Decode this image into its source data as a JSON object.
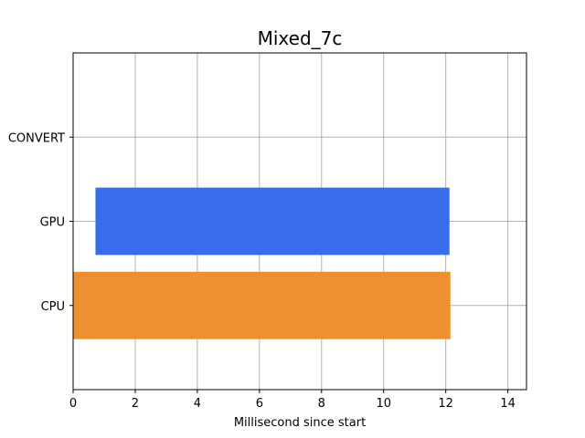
{
  "chart_data": {
    "type": "bar",
    "orientation": "horizontal",
    "title": "Mixed_7c",
    "xlabel": "Millisecond since start",
    "ylabel": "",
    "xlim": [
      0,
      14.6
    ],
    "xticks": [
      0,
      2,
      4,
      6,
      8,
      10,
      12,
      14
    ],
    "categories": [
      "CPU",
      "GPU",
      "CONVERT"
    ],
    "bars": [
      {
        "category": "CPU",
        "start": 0.0,
        "end": 12.15,
        "color": "#ef9030"
      },
      {
        "category": "GPU",
        "start": 0.72,
        "end": 12.12,
        "color": "#386dec"
      }
    ],
    "grid": true,
    "legend": "none"
  }
}
